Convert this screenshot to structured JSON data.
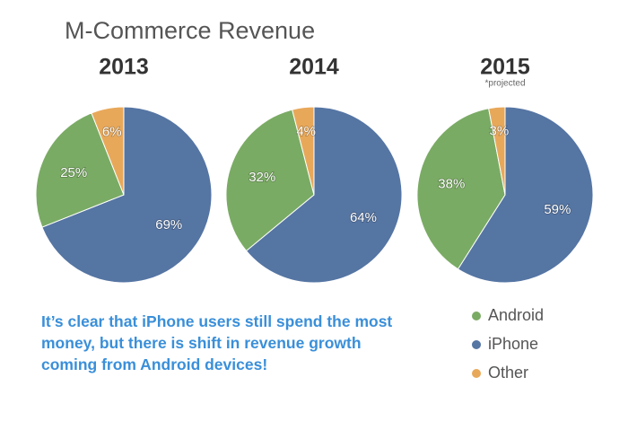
{
  "title": "M-Commerce Revenue",
  "note": "It’s clear that iPhone users still spend the most money, but there is shift in revenue growth coming from Android devices!",
  "chart_data": [
    {
      "type": "pie",
      "title": "2013",
      "categories": [
        "Android",
        "iPhone",
        "Other"
      ],
      "values": [
        25,
        69,
        6
      ],
      "value_labels": [
        "25%",
        "69%",
        "6%"
      ],
      "colors": [
        "#7aab64",
        "#5575a3",
        "#e8a85a"
      ]
    },
    {
      "type": "pie",
      "title": "2014",
      "categories": [
        "Android",
        "iPhone",
        "Other"
      ],
      "values": [
        32,
        64,
        4
      ],
      "value_labels": [
        "32%",
        "64%",
        "4%"
      ],
      "colors": [
        "#7aab64",
        "#5575a3",
        "#e8a85a"
      ]
    },
    {
      "type": "pie",
      "title": "2015",
      "subtitle": "*projected",
      "categories": [
        "Android",
        "iPhone",
        "Other"
      ],
      "values": [
        38,
        59,
        3
      ],
      "value_labels": [
        "38%",
        "59%",
        "3%"
      ],
      "colors": [
        "#7aab64",
        "#5575a3",
        "#e8a85a"
      ]
    }
  ]
}
